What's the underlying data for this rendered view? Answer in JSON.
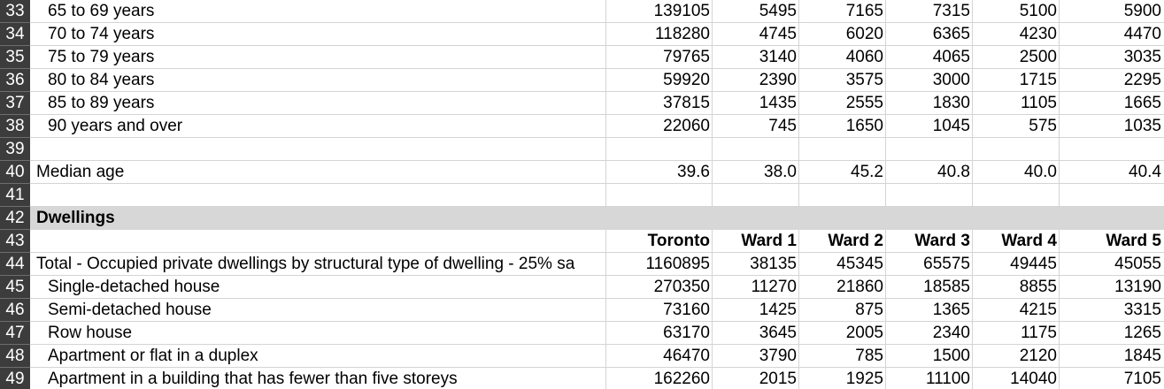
{
  "header_columns": [
    "Toronto",
    "Ward 1",
    "Ward 2",
    "Ward 3",
    "Ward 4",
    "Ward 5"
  ],
  "rows": [
    {
      "num": "33",
      "label": "65 to 69 years",
      "indent": true,
      "values": [
        "139105",
        "5495",
        "7165",
        "7315",
        "5100",
        "5900"
      ]
    },
    {
      "num": "34",
      "label": "70 to 74 years",
      "indent": true,
      "values": [
        "118280",
        "4745",
        "6020",
        "6365",
        "4230",
        "4470"
      ]
    },
    {
      "num": "35",
      "label": "75 to 79 years",
      "indent": true,
      "values": [
        "79765",
        "3140",
        "4060",
        "4065",
        "2500",
        "3035"
      ]
    },
    {
      "num": "36",
      "label": "80 to 84 years",
      "indent": true,
      "values": [
        "59920",
        "2390",
        "3575",
        "3000",
        "1715",
        "2295"
      ]
    },
    {
      "num": "37",
      "label": "85 to 89 years",
      "indent": true,
      "values": [
        "37815",
        "1435",
        "2555",
        "1830",
        "1105",
        "1665"
      ]
    },
    {
      "num": "38",
      "label": "90 years and over",
      "indent": true,
      "values": [
        "22060",
        "745",
        "1650",
        "1045",
        "575",
        "1035"
      ]
    },
    {
      "num": "39",
      "label": "",
      "values": [
        "",
        "",
        "",
        "",
        "",
        ""
      ]
    },
    {
      "num": "40",
      "label": "Median age",
      "values": [
        "39.6",
        "38.0",
        "45.2",
        "40.8",
        "40.0",
        "40.4"
      ]
    },
    {
      "num": "41",
      "label": "",
      "values": [
        "",
        "",
        "",
        "",
        "",
        ""
      ]
    },
    {
      "num": "42",
      "label": "Dwellings",
      "section": true,
      "values": [
        "",
        "",
        "",
        "",
        "",
        ""
      ]
    },
    {
      "num": "43",
      "label": "",
      "header": true,
      "values": [
        "Toronto",
        "Ward 1",
        "Ward 2",
        "Ward 3",
        "Ward 4",
        "Ward 5"
      ]
    },
    {
      "num": "44",
      "label": "Total - Occupied private dwellings by structural type of dwelling - 25% sa",
      "values": [
        "1160895",
        "38135",
        "45345",
        "65575",
        "49445",
        "45055"
      ]
    },
    {
      "num": "45",
      "label": "Single-detached house",
      "indent": true,
      "values": [
        "270350",
        "11270",
        "21860",
        "18585",
        "8855",
        "13190"
      ]
    },
    {
      "num": "46",
      "label": "Semi-detached house",
      "indent": true,
      "values": [
        "73160",
        "1425",
        "875",
        "1365",
        "4215",
        "3315"
      ]
    },
    {
      "num": "47",
      "label": "Row house",
      "indent": true,
      "values": [
        "63170",
        "3645",
        "2005",
        "2340",
        "1175",
        "1265"
      ]
    },
    {
      "num": "48",
      "label": "Apartment or flat in a duplex",
      "indent": true,
      "values": [
        "46470",
        "3790",
        "785",
        "1500",
        "2120",
        "1845"
      ]
    },
    {
      "num": "49",
      "label": "Apartment in a building that has fewer than five storeys",
      "indent": true,
      "values": [
        "162260",
        "2015",
        "1925",
        "11100",
        "14040",
        "7105"
      ]
    }
  ],
  "colors": {
    "row_header_bg": "#3c3c3c",
    "section_bg": "#d7d7d7",
    "grid": "#d4d4d4"
  }
}
